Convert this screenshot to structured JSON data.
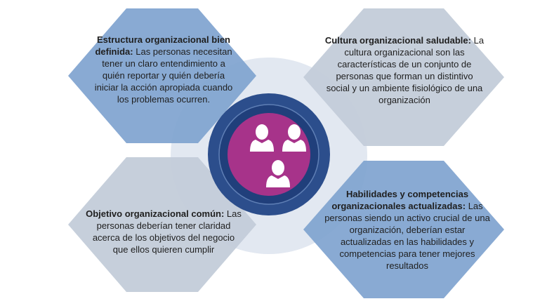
{
  "colors": {
    "hex_blue": "#7EA2CD",
    "hex_blue_light": "#A8C0DE",
    "hex_grey": "#C4CCD8",
    "outer_ring": "#2B4F8C",
    "inner_ring": "#1D3F7A",
    "center": "#A7338A",
    "halo": "#DDE4EE"
  },
  "center": {
    "icon": "people-group-icon"
  },
  "cards": [
    {
      "title": "Estructura organizacional bien definida:",
      "body": "Las personas necesitan tener un claro entendimiento a quién reportar y quién debería iniciar la acción apropiada cuando los problemas ocurren."
    },
    {
      "title": "Cultura organizacional saludable:",
      "body": "La cultura organizacional son las características de un conjunto de personas que forman un distintivo social y un ambiente fisiológico de una organización"
    },
    {
      "title": "Objetivo organizacional común:",
      "body": "Las personas deberían tener claridad acerca de los objetivos del negocio que ellos quieren cumplir"
    },
    {
      "title": "Habilidades y competencias organizacionales actualizadas:",
      "body": "Las personas siendo un activo crucial de una organización, deberían estar actualizadas en las habilidades y competencias para tener mejores resultados"
    }
  ]
}
